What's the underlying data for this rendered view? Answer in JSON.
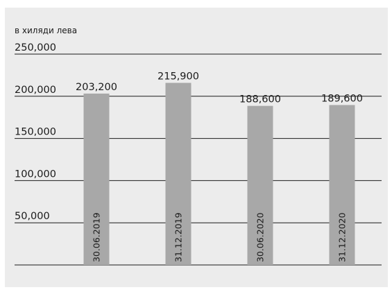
{
  "chart_data": {
    "type": "bar",
    "unit_label": "в хиляди лева",
    "categories": [
      "30.06.2019",
      "31.12.2019",
      "30.06.2020",
      "31.12.2020"
    ],
    "values": [
      203200,
      215900,
      188600,
      189600
    ],
    "value_labels": [
      "203,200",
      "215,900",
      "188,600",
      "189,600"
    ],
    "ylim": [
      0,
      250000
    ],
    "yticks": [
      50000,
      100000,
      150000,
      200000,
      250000
    ],
    "ytick_labels": [
      "50,000",
      "100,000",
      "150,000",
      "200,000",
      "250,000"
    ],
    "grid": true,
    "colors": {
      "bar": "#a8a8a8",
      "background": "#ececec",
      "grid": "#1a1a1a"
    }
  }
}
